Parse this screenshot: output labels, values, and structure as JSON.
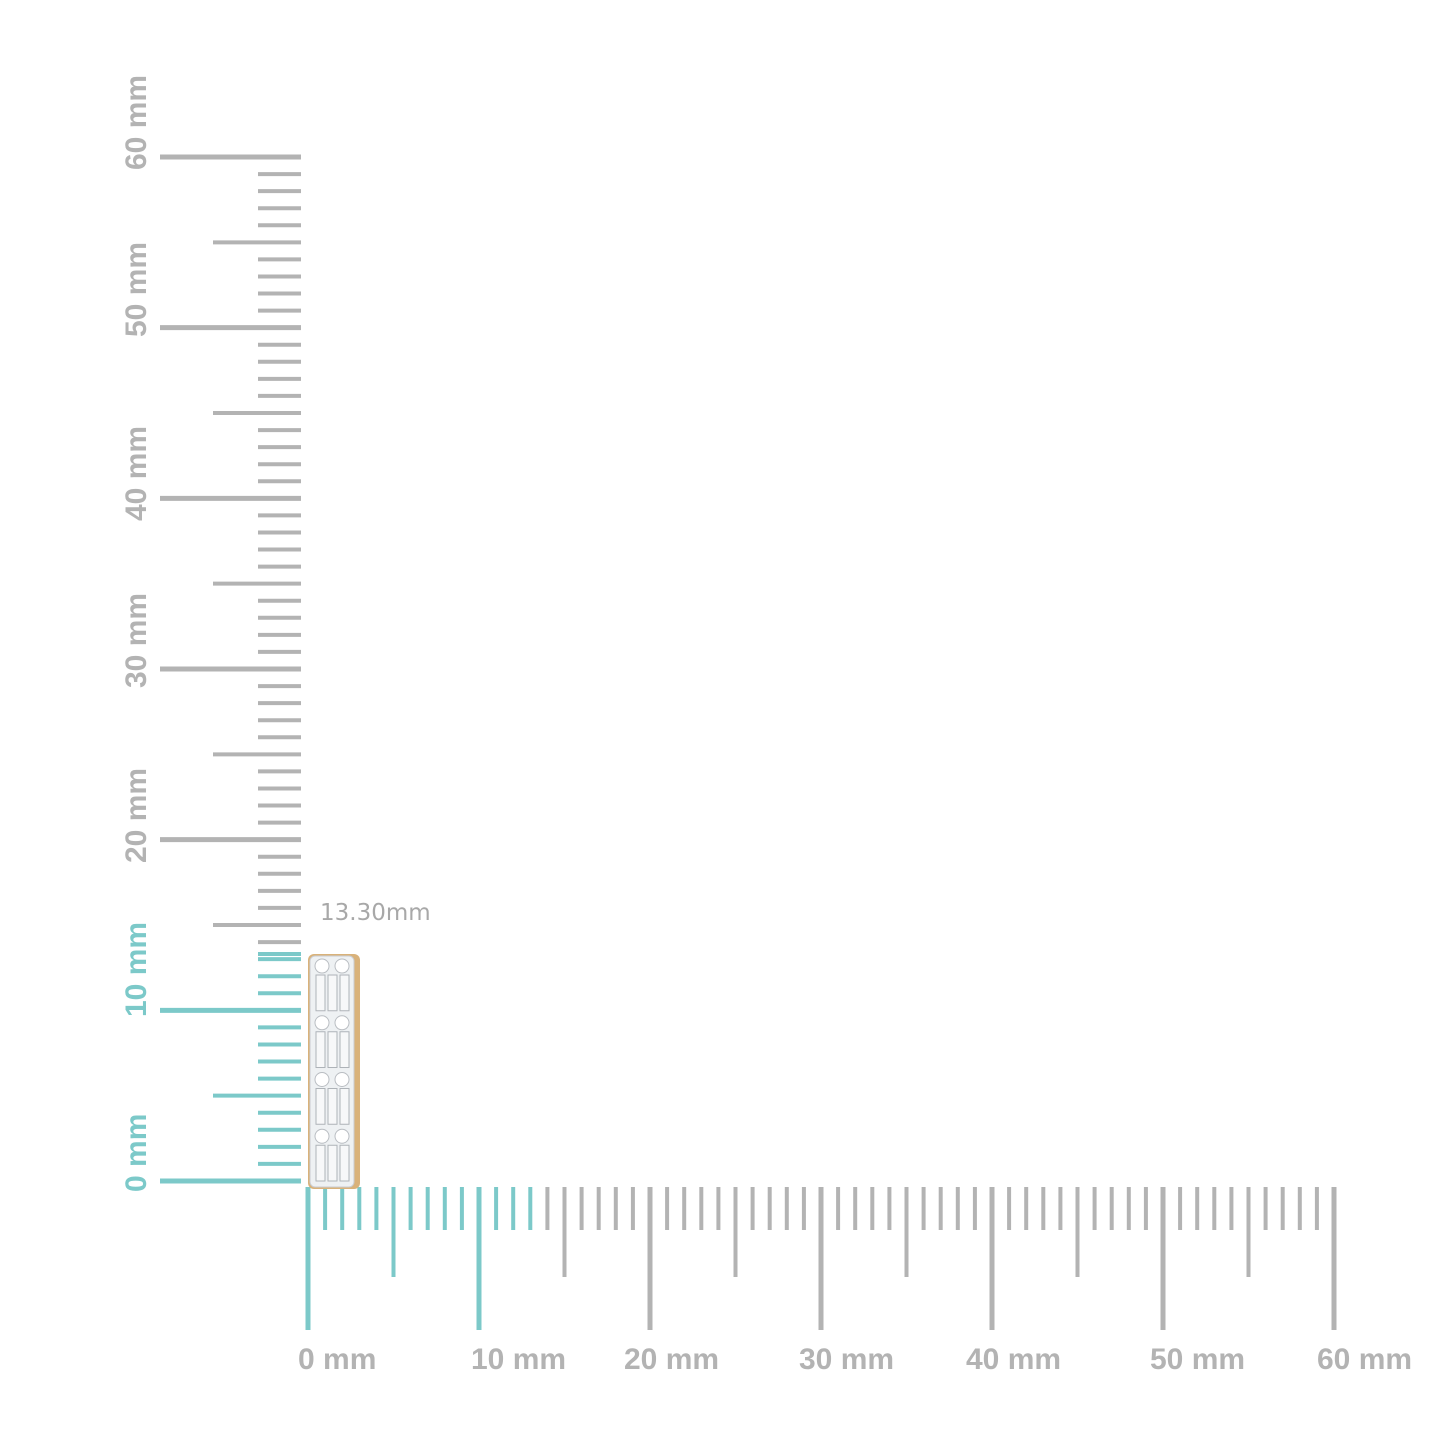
{
  "measurement": {
    "label": "13.30mm",
    "value_mm": 13.3
  },
  "x_axis": {
    "labels": [
      "0 mm",
      "10 mm",
      "20 mm",
      "30 mm",
      "40 mm",
      "50 mm",
      "60 mm"
    ],
    "range_mm": [
      0,
      60
    ]
  },
  "y_axis": {
    "labels": [
      "0 mm",
      "10 mm",
      "20 mm",
      "30 mm",
      "40 mm",
      "50 mm",
      "60 mm"
    ],
    "range_mm": [
      0,
      60
    ]
  },
  "colors": {
    "ruler": "#b3b3b3",
    "highlight": "#7cc9c9",
    "highlight_dark": "#5fa8a8",
    "gold": "#d9b27a",
    "stone": "#eef1f3"
  },
  "product": {
    "icon": "earring-product-image"
  }
}
